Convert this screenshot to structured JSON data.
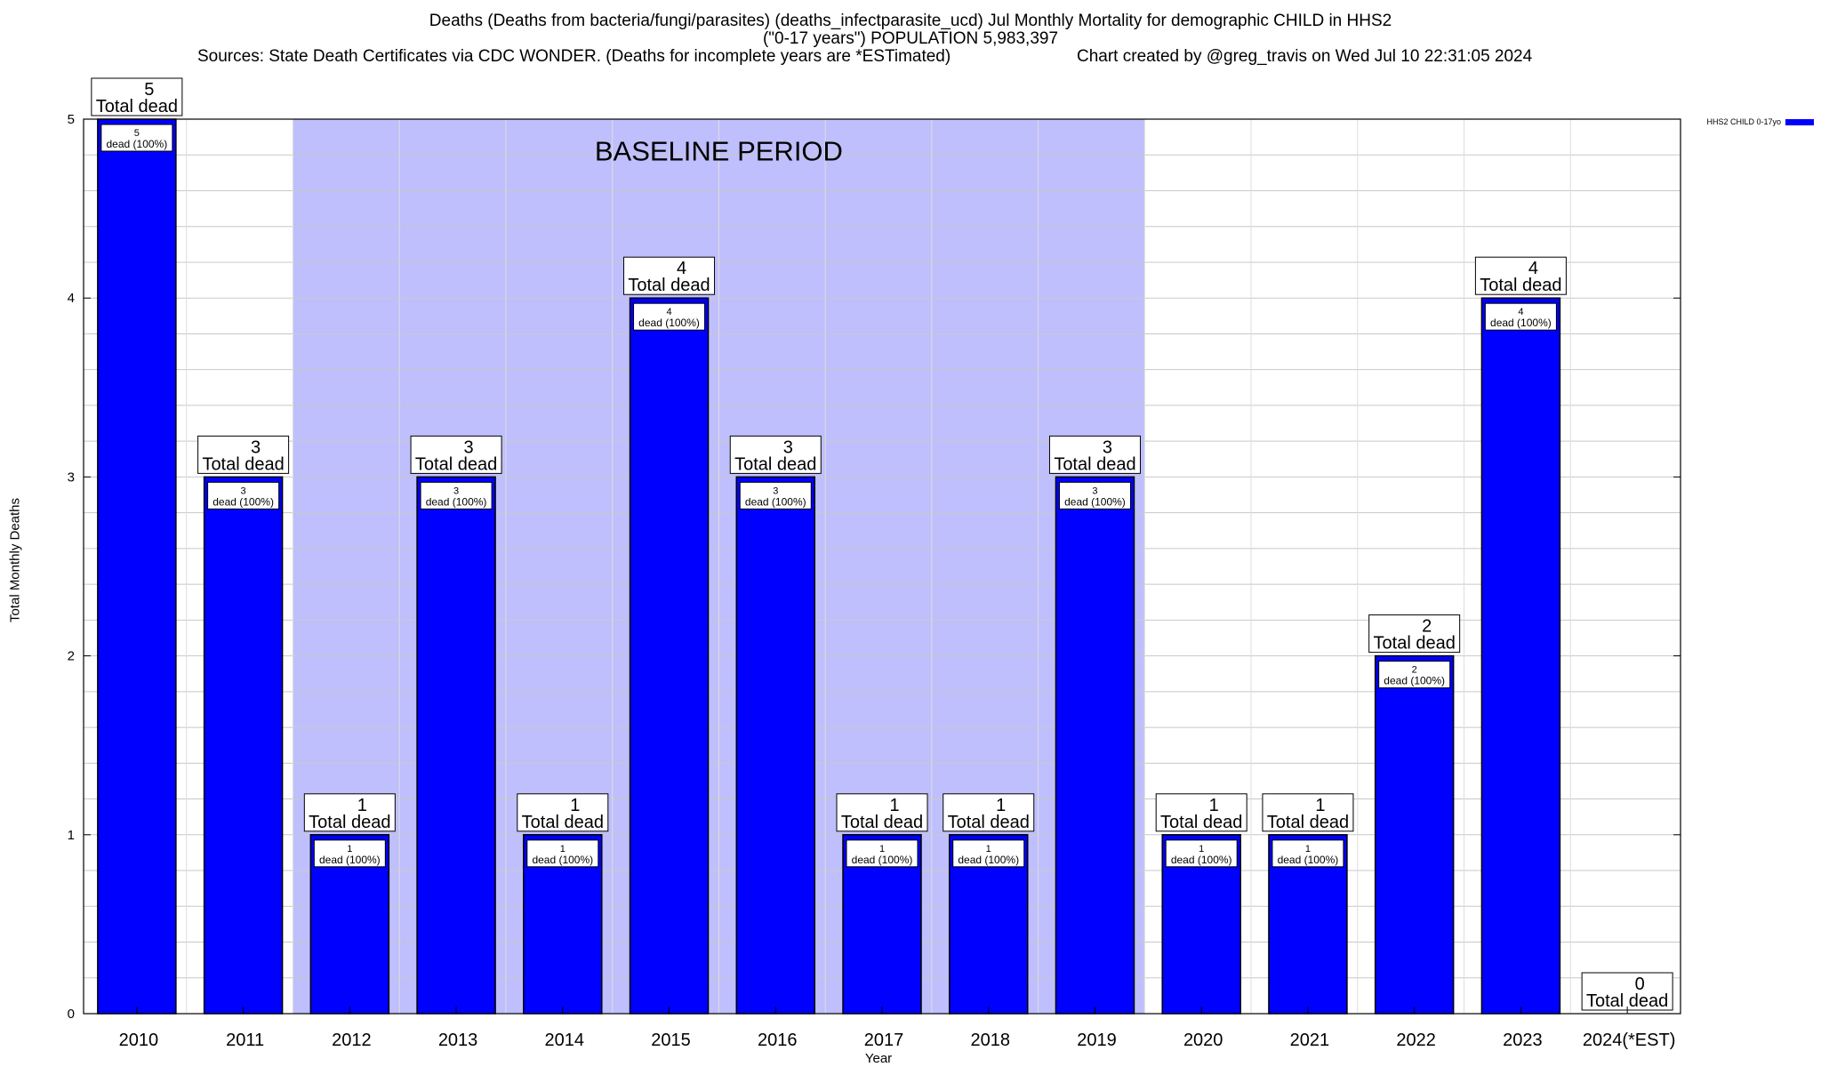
{
  "header": {
    "title_line1": "Deaths (Deaths from bacteria/fungi/parasites) (deaths_infectparasite_ucd) Jul Monthly Mortality for demographic CHILD in HHS2",
    "title_line2": "(\"0-17 years\") POPULATION 5,983,397",
    "sources": "Sources: State Death Certificates via CDC WONDER. (Deaths for incomplete years are *ESTimated)",
    "credit": "Chart created by @greg_travis on Wed Jul 10 22:31:05 2024"
  },
  "chart_data": {
    "type": "bar",
    "title": "Deaths (Deaths from bacteria/fungi/parasites) (deaths_infectparasite_ucd) Jul Monthly Mortality for demographic CHILD in HHS2",
    "xlabel": "Year",
    "ylabel": "Total Monthly Deaths",
    "ylim": [
      0,
      5
    ],
    "yticks": [
      0,
      1,
      2,
      3,
      4,
      5
    ],
    "grid": true,
    "legend": "top-right",
    "categories": [
      "2010",
      "2011",
      "2012",
      "2013",
      "2014",
      "2015",
      "2016",
      "2017",
      "2018",
      "2019",
      "2020",
      "2021",
      "2022",
      "2023",
      "2024(*EST)"
    ],
    "series": [
      {
        "name": "HHS2 CHILD 0-17yo",
        "color": "#0000ff",
        "values": [
          5,
          3,
          1,
          3,
          1,
          4,
          3,
          1,
          1,
          3,
          1,
          1,
          2,
          4,
          0
        ]
      }
    ],
    "top_label_suffix": "Total dead",
    "inner_label_suffix": "dead (100%)",
    "baseline": {
      "label": "BASELINE PERIOD",
      "start": "2012",
      "end": "2019",
      "color": "#bfbffd"
    }
  }
}
